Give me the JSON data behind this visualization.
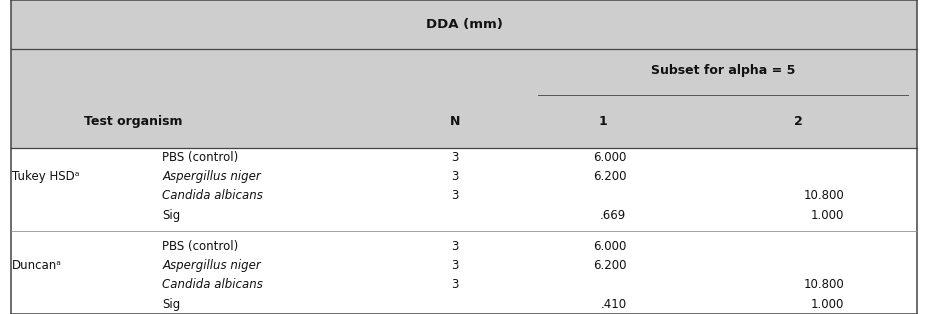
{
  "title": "DDA (mm)",
  "subset_header": "Subset for alpha = 5",
  "col_headers": [
    "Test organism",
    "N",
    "1",
    "2"
  ],
  "header_bg": "#cecece",
  "body_bg": "#ffffff",
  "figsize": [
    9.28,
    3.14
  ],
  "dpi": 100,
  "rows": [
    {
      "group": "Tukey HSDᵃ",
      "subrows": [
        {
          "label": "PBS (control)",
          "italic": false,
          "N": "3",
          "col1": "6.000",
          "col2": ""
        },
        {
          "label": "Aspergillus niger",
          "italic": true,
          "N": "3",
          "col1": "6.200",
          "col2": ""
        },
        {
          "label": "Candida albicans",
          "italic": true,
          "N": "3",
          "col1": "",
          "col2": "10.800"
        },
        {
          "label": "Sig",
          "italic": false,
          "N": "",
          "col1": ".669",
          "col2": "1.000"
        }
      ]
    },
    {
      "group": "Duncanᵃ",
      "subrows": [
        {
          "label": "PBS (control)",
          "italic": false,
          "N": "3",
          "col1": "6.000",
          "col2": ""
        },
        {
          "label": "Aspergillus niger",
          "italic": true,
          "N": "3",
          "col1": "6.200",
          "col2": ""
        },
        {
          "label": "Candida albicans",
          "italic": true,
          "N": "3",
          "col1": "",
          "col2": "10.800"
        },
        {
          "label": "Sig",
          "italic": false,
          "N": "",
          "col1": ".410",
          "col2": "1.000"
        }
      ]
    }
  ]
}
